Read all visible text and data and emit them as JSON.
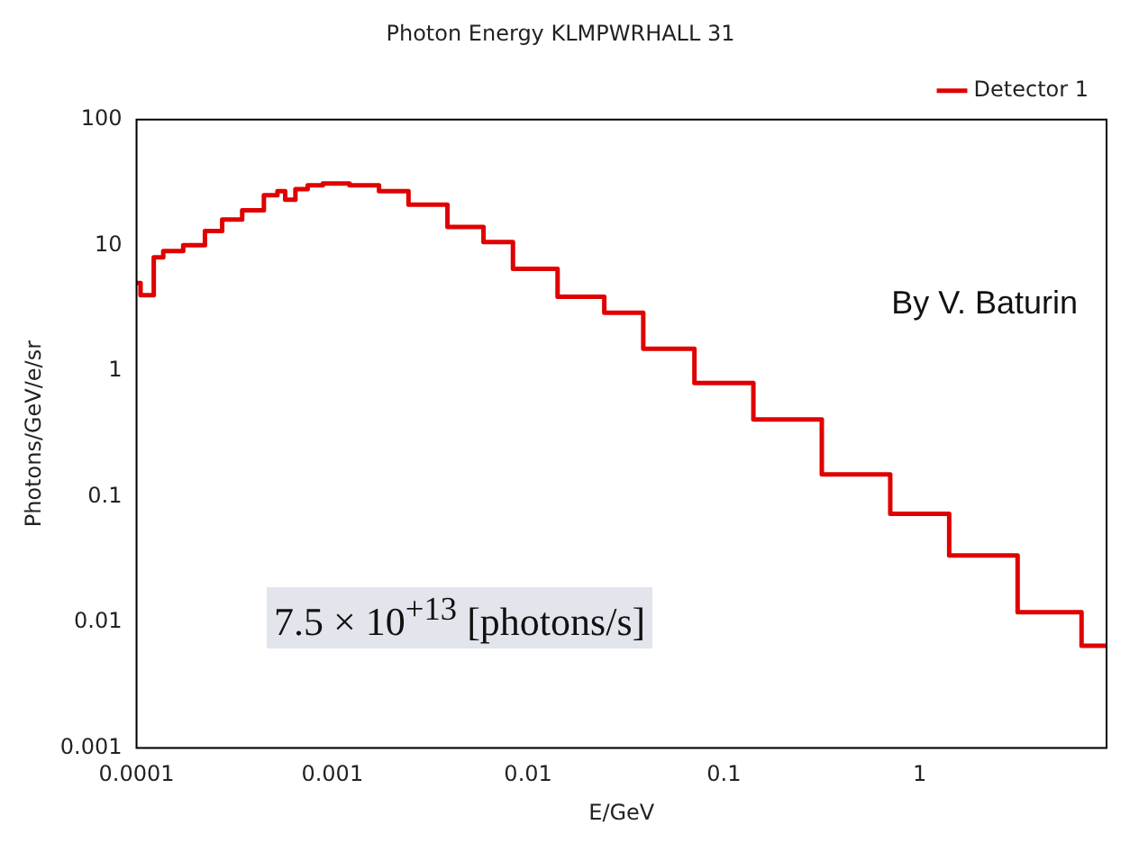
{
  "chart_data": {
    "type": "step",
    "title": "Photon Energy KLMPWRHALL 31",
    "xlabel": "E/GeV",
    "ylabel": "Photons/GeV/e/sr",
    "x": [
      0.0001,
      0.00011,
      0.00012,
      0.000125,
      0.00015,
      0.0002,
      0.00025,
      0.0003,
      0.0004,
      0.0005,
      0.00055,
      0.0006,
      0.0007,
      0.0008,
      0.001,
      0.0015,
      0.002,
      0.003,
      0.005,
      0.007,
      0.01,
      0.02,
      0.03,
      0.05,
      0.1,
      0.2,
      0.5,
      1,
      2,
      5,
      9
    ],
    "series": [
      {
        "name": "Detector 1",
        "color": "#e00000",
        "values": [
          5,
          4,
          4,
          8,
          9,
          10,
          13,
          16,
          19,
          25,
          27,
          23,
          28,
          30,
          31,
          30,
          27,
          21,
          14,
          10.6,
          6.5,
          3.9,
          2.9,
          1.5,
          0.8,
          0.41,
          0.15,
          0.073,
          0.034,
          0.012,
          0.0065
        ]
      }
    ],
    "log": "xy",
    "xlim": [
      0.0001,
      9
    ],
    "xticks": [
      0.0001,
      0.001,
      0.01,
      0.1,
      1
    ],
    "ylim": [
      0.001,
      100
    ],
    "yticks": [
      0.001,
      0.01,
      0.1,
      1,
      10,
      100
    ],
    "grid": false,
    "legend": "top right",
    "annotations": [
      "By V. Baturin",
      "7.5 × 10$^{+13}$ [photons/s]"
    ]
  }
}
